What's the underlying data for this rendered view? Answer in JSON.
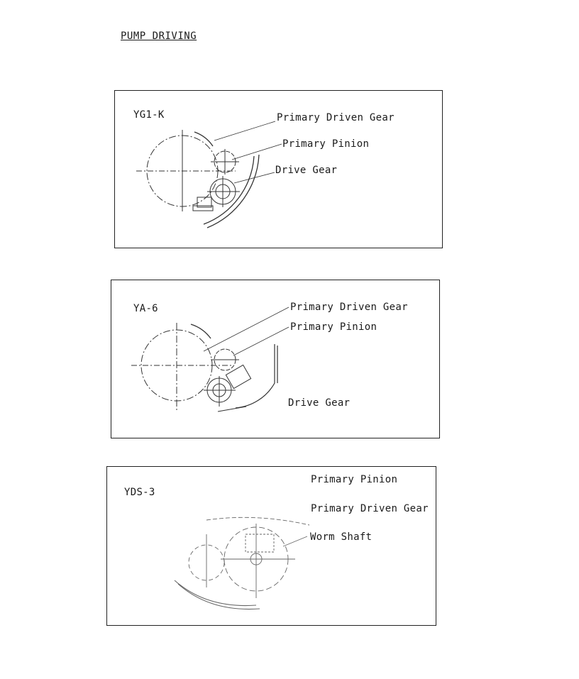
{
  "page": {
    "title": "PUMP DRIVING"
  },
  "panels": [
    {
      "model": "YG1-K",
      "labels": {
        "primary_driven_gear": "Primary Driven Gear",
        "primary_pinion": "Primary Pinion",
        "drive_gear": "Drive Gear"
      }
    },
    {
      "model": "YA-6",
      "labels": {
        "primary_driven_gear": "Primary Driven Gear",
        "primary_pinion": "Primary Pinion",
        "drive_gear": "Drive Gear"
      }
    },
    {
      "model": "YDS-3",
      "labels": {
        "primary_pinion": "Primary Pinion",
        "primary_driven_gear": "Primary Driven Gear",
        "worm_shaft": "Worm Shaft"
      }
    }
  ]
}
